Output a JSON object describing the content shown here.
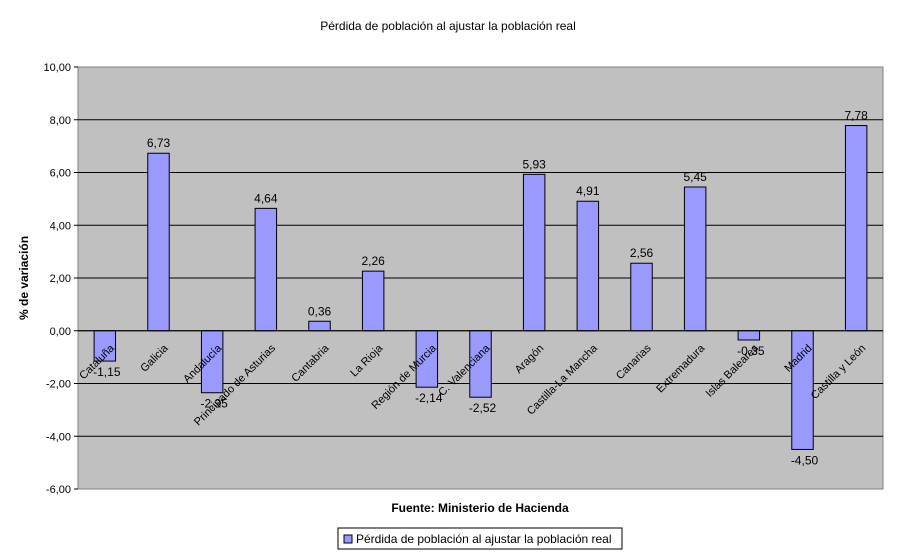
{
  "chart_data": {
    "type": "bar",
    "title": "Pérdida de población al ajustar la población real",
    "xlabel": "Fuente: Ministerio de Hacienda",
    "ylabel": "% de variación",
    "ylim": [
      -6,
      10
    ],
    "yticks": [
      10,
      8,
      6,
      4,
      2,
      0,
      -2,
      -4,
      -6
    ],
    "ytick_labels": [
      "10,00",
      "8,00",
      "6,00",
      "4,00",
      "2,00",
      "0,00",
      "-2,00",
      "-4,00",
      "-6,00"
    ],
    "grid": true,
    "legend_position": "bottom",
    "categories": [
      "Cataluña",
      "Galicia",
      "Andalucía",
      "Principado de Asturias",
      "Cantabria",
      "La Rioja",
      "Región de Murcia",
      "C. Valenciana",
      "Aragón",
      "Castilla-La Mancha",
      "Canarias",
      "Extremadura",
      "Islas Baleares",
      "Madrid",
      "Castilla y León"
    ],
    "series": [
      {
        "name": "Pérdida de población al ajustar la población real",
        "values": [
          -1.15,
          6.73,
          -2.35,
          4.64,
          0.36,
          2.26,
          -2.14,
          -2.52,
          5.93,
          4.91,
          2.56,
          5.45,
          -0.35,
          -4.5,
          7.78
        ],
        "value_labels": [
          "-1,15",
          "6,73",
          "-2,35",
          "4,64",
          "0,36",
          "2,26",
          "-2,14",
          "-2,52",
          "5,93",
          "4,91",
          "2,56",
          "5,45",
          "-0,35",
          "-4,50",
          "7,78"
        ]
      }
    ],
    "colors": {
      "bar": "#9999ff",
      "plot_background": "#c0c0c0",
      "gridline": "#000000"
    }
  }
}
